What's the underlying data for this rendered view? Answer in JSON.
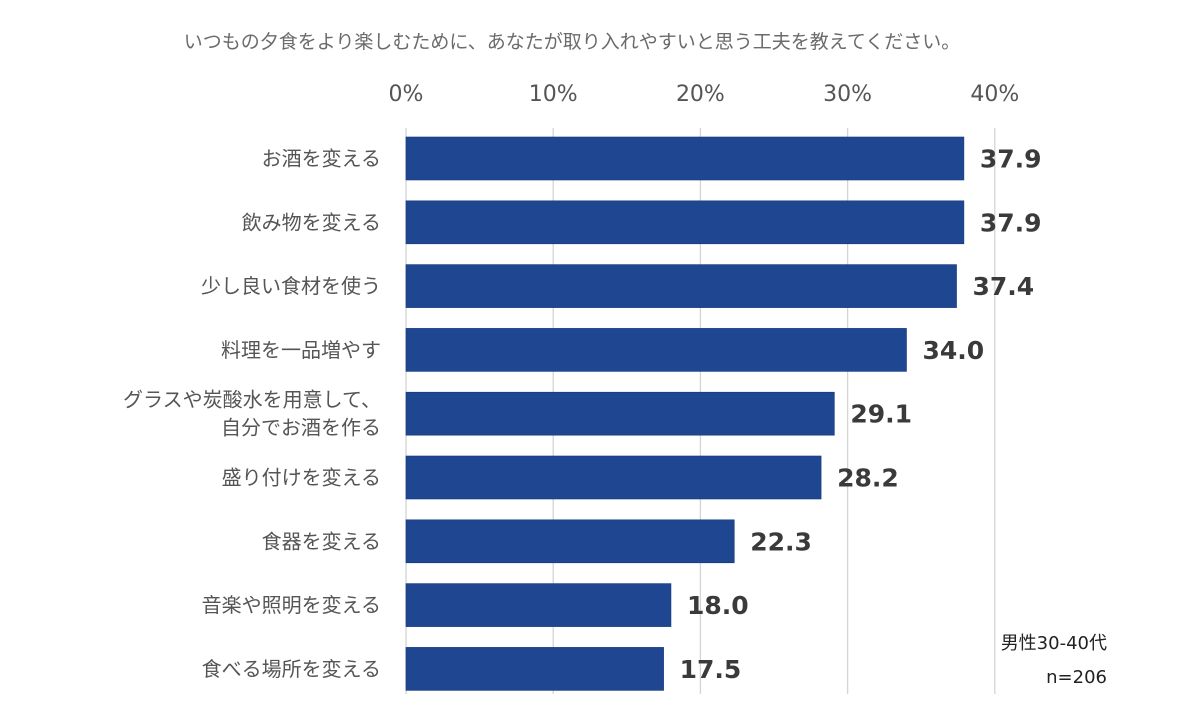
{
  "chart_data": {
    "type": "bar",
    "orientation": "horizontal",
    "title": "いつもの夕食をより楽しむために、あなたが取り入れやすいと思う工夫を教えてください。",
    "x_axis": {
      "range": [
        0,
        40
      ],
      "ticks": [
        0,
        10,
        20,
        30,
        40
      ],
      "tick_labels": [
        "0%",
        "10%",
        "20%",
        "30%",
        "40%"
      ],
      "position": "top"
    },
    "grid": true,
    "categories": [
      [
        "お酒を変える"
      ],
      [
        "飲み物を変える"
      ],
      [
        "少し良い食材を使う"
      ],
      [
        "料理を一品増やす"
      ],
      [
        "グラスや炭酸水を用意して、",
        "自分でお酒を作る"
      ],
      [
        "盛り付けを変える"
      ],
      [
        "食器を変える"
      ],
      [
        "音楽や照明を変える"
      ],
      [
        "食べる場所を変える"
      ]
    ],
    "values": [
      37.9,
      37.9,
      37.4,
      34.0,
      29.1,
      28.2,
      22.3,
      18.0,
      17.5
    ],
    "value_labels": [
      "37.9",
      "37.9",
      "37.4",
      "34.0",
      "29.1",
      "28.2",
      "22.3",
      "18.0",
      "17.5"
    ],
    "annotation": [
      "男性30-40代",
      "n=206"
    ]
  },
  "colors": {
    "bar": "#1f4690",
    "bar_edge": "#17387a",
    "title_text": "#6b6b6b",
    "tick_text": "#555555",
    "category_text": "#555555",
    "value_text": "#3a3a3a",
    "grid": "#d4d4d4",
    "annotation_text": "#222222"
  }
}
